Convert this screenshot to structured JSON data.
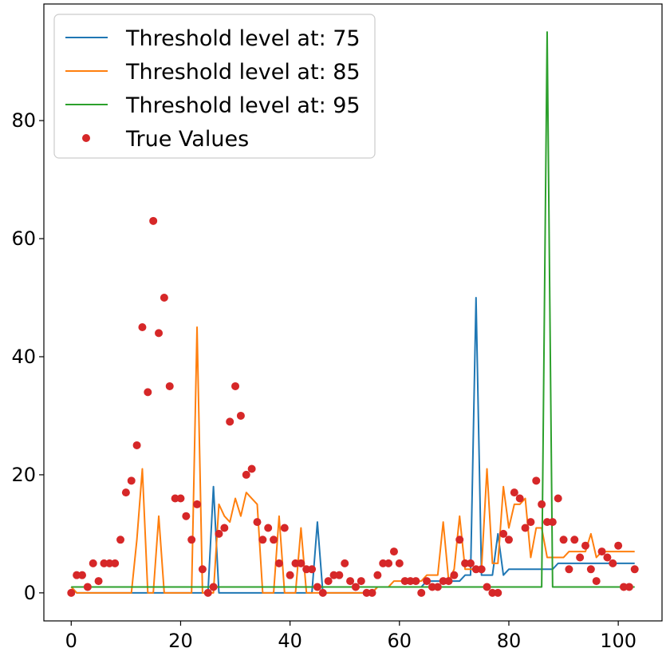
{
  "chart_data": {
    "type": "line",
    "xlim": [
      -5,
      108
    ],
    "ylim": [
      -4.75,
      99.75
    ],
    "x_ticks": [
      0,
      20,
      40,
      60,
      80,
      100
    ],
    "y_ticks": [
      0,
      20,
      40,
      60,
      80
    ],
    "grid": false,
    "legend_position": "top-left",
    "series": [
      {
        "name": "Threshold level at: 75",
        "kind": "line",
        "color": "#1f77b4",
        "x": [
          0,
          1,
          2,
          3,
          4,
          5,
          6,
          7,
          8,
          9,
          10,
          11,
          12,
          13,
          14,
          15,
          16,
          17,
          18,
          19,
          20,
          21,
          22,
          23,
          24,
          25,
          26,
          27,
          28,
          29,
          30,
          31,
          32,
          33,
          34,
          35,
          36,
          37,
          38,
          39,
          40,
          41,
          42,
          43,
          44,
          45,
          46,
          47,
          48,
          49,
          50,
          51,
          52,
          53,
          54,
          55,
          56,
          57,
          58,
          59,
          60,
          61,
          62,
          63,
          64,
          65,
          66,
          67,
          68,
          69,
          70,
          71,
          72,
          73,
          74,
          75,
          76,
          77,
          78,
          79,
          80,
          81,
          82,
          83,
          84,
          85,
          86,
          87,
          88,
          89,
          90,
          91,
          92,
          93,
          94,
          95,
          96,
          97,
          98,
          99,
          100,
          101,
          102,
          103
        ],
        "values": [
          1,
          0,
          0,
          0,
          0,
          0,
          0,
          0,
          0,
          0,
          0,
          0,
          0,
          0,
          0,
          0,
          0,
          0,
          0,
          0,
          0,
          0,
          0,
          0,
          0,
          0,
          18,
          0,
          0,
          0,
          0,
          0,
          0,
          0,
          0,
          0,
          0,
          0,
          0,
          0,
          0,
          0,
          0,
          0,
          0,
          12,
          0,
          0,
          0,
          0,
          0,
          0,
          0,
          0,
          0,
          0,
          1,
          1,
          1,
          1,
          1,
          1,
          1,
          1,
          1,
          2,
          2,
          2,
          2,
          2,
          2,
          2,
          3,
          3,
          50,
          3,
          3,
          3,
          10,
          3,
          4,
          4,
          4,
          4,
          4,
          4,
          4,
          4,
          4,
          5,
          5,
          5,
          5,
          5,
          5,
          5,
          5,
          5,
          5,
          5,
          5,
          5,
          5,
          5
        ]
      },
      {
        "name": "Threshold level at: 85",
        "kind": "line",
        "color": "#ff7f0e",
        "x": [
          0,
          1,
          2,
          3,
          4,
          5,
          6,
          7,
          8,
          9,
          10,
          11,
          12,
          13,
          14,
          15,
          16,
          17,
          18,
          19,
          20,
          21,
          22,
          23,
          24,
          25,
          26,
          27,
          28,
          29,
          30,
          31,
          32,
          33,
          34,
          35,
          36,
          37,
          38,
          39,
          40,
          41,
          42,
          43,
          44,
          45,
          46,
          47,
          48,
          49,
          50,
          51,
          52,
          53,
          54,
          55,
          56,
          57,
          58,
          59,
          60,
          61,
          62,
          63,
          64,
          65,
          66,
          67,
          68,
          69,
          70,
          71,
          72,
          73,
          74,
          75,
          76,
          77,
          78,
          79,
          80,
          81,
          82,
          83,
          84,
          85,
          86,
          87,
          88,
          89,
          90,
          91,
          92,
          93,
          94,
          95,
          96,
          97,
          98,
          99,
          100,
          101,
          102,
          103
        ],
        "values": [
          1,
          0,
          0,
          0,
          0,
          0,
          0,
          0,
          0,
          0,
          0,
          0,
          9,
          21,
          0,
          0,
          13,
          0,
          0,
          0,
          0,
          0,
          0,
          45,
          0,
          0,
          0,
          15,
          13,
          12,
          16,
          13,
          17,
          16,
          15,
          0,
          0,
          0,
          13,
          0,
          0,
          0,
          11,
          0,
          0,
          0,
          0,
          0,
          0,
          0,
          0,
          0,
          0,
          0,
          0,
          0,
          1,
          1,
          1,
          2,
          2,
          2,
          2,
          2,
          2,
          3,
          3,
          3,
          12,
          2,
          4,
          13,
          4,
          4,
          4,
          4,
          21,
          5,
          5,
          18,
          11,
          15,
          15,
          16,
          6,
          11,
          11,
          6,
          6,
          6,
          6,
          7,
          7,
          7,
          7,
          10,
          6,
          7,
          7,
          7,
          7,
          7,
          7,
          7
        ]
      },
      {
        "name": "Threshold level at: 95",
        "kind": "line",
        "color": "#2ca02c",
        "x": [
          0,
          1,
          2,
          3,
          4,
          5,
          6,
          7,
          8,
          9,
          10,
          11,
          12,
          13,
          14,
          15,
          16,
          17,
          18,
          19,
          20,
          21,
          22,
          23,
          24,
          25,
          26,
          27,
          28,
          29,
          30,
          31,
          32,
          33,
          34,
          35,
          36,
          37,
          38,
          39,
          40,
          41,
          42,
          43,
          44,
          45,
          46,
          47,
          48,
          49,
          50,
          51,
          52,
          53,
          54,
          55,
          56,
          57,
          58,
          59,
          60,
          61,
          62,
          63,
          64,
          65,
          66,
          67,
          68,
          69,
          70,
          71,
          72,
          73,
          74,
          75,
          76,
          77,
          78,
          79,
          80,
          81,
          82,
          83,
          84,
          85,
          86,
          87,
          88,
          89,
          90,
          91,
          92,
          93,
          94,
          95,
          96,
          97,
          98,
          99,
          100,
          101,
          102,
          103
        ],
        "values": [
          1,
          1,
          1,
          1,
          1,
          1,
          1,
          1,
          1,
          1,
          1,
          1,
          1,
          1,
          1,
          1,
          1,
          1,
          1,
          1,
          1,
          1,
          1,
          1,
          1,
          1,
          1,
          1,
          1,
          1,
          1,
          1,
          1,
          1,
          1,
          1,
          1,
          1,
          1,
          1,
          1,
          1,
          1,
          1,
          1,
          1,
          1,
          1,
          1,
          1,
          1,
          1,
          1,
          1,
          1,
          1,
          1,
          1,
          1,
          1,
          1,
          1,
          1,
          1,
          1,
          1,
          1,
          1,
          1,
          1,
          1,
          1,
          1,
          1,
          1,
          1,
          1,
          1,
          1,
          1,
          1,
          1,
          1,
          1,
          1,
          1,
          1,
          95,
          1,
          1,
          1,
          1,
          1,
          1,
          1,
          1,
          1,
          1,
          1,
          1,
          1,
          1,
          1,
          1
        ]
      },
      {
        "name": "True Values",
        "kind": "points",
        "color": "#d62728",
        "x": [
          0,
          1,
          2,
          3,
          4,
          5,
          6,
          7,
          8,
          9,
          10,
          11,
          12,
          13,
          14,
          15,
          16,
          17,
          18,
          19,
          20,
          21,
          22,
          23,
          24,
          25,
          26,
          27,
          28,
          29,
          30,
          31,
          32,
          33,
          34,
          35,
          36,
          37,
          38,
          39,
          40,
          41,
          42,
          43,
          44,
          45,
          46,
          47,
          48,
          49,
          50,
          51,
          52,
          53,
          54,
          55,
          56,
          57,
          58,
          59,
          60,
          61,
          62,
          63,
          64,
          65,
          66,
          67,
          68,
          69,
          70,
          71,
          72,
          73,
          74,
          75,
          76,
          77,
          78,
          79,
          80,
          81,
          82,
          83,
          84,
          85,
          86,
          87,
          88,
          89,
          90,
          91,
          92,
          93,
          94,
          95,
          96,
          97,
          98,
          99,
          100,
          101,
          102,
          103
        ],
        "values": [
          0,
          3,
          3,
          1,
          5,
          2,
          5,
          5,
          5,
          9,
          17,
          19,
          25,
          45,
          34,
          63,
          44,
          50,
          35,
          16,
          16,
          13,
          9,
          15,
          4,
          0,
          1,
          10,
          11,
          29,
          35,
          30,
          20,
          21,
          12,
          9,
          11,
          9,
          5,
          11,
          3,
          5,
          5,
          4,
          4,
          1,
          0,
          2,
          3,
          3,
          5,
          2,
          1,
          2,
          0,
          0,
          3,
          5,
          5,
          7,
          5,
          2,
          2,
          2,
          0,
          2,
          1,
          1,
          2,
          2,
          3,
          9,
          5,
          5,
          4,
          4,
          1,
          0,
          0,
          10,
          9,
          17,
          16,
          11,
          12,
          19,
          15,
          12,
          12,
          16,
          9,
          4,
          9,
          6,
          8,
          4,
          2,
          7,
          6,
          5,
          8,
          1,
          1,
          4
        ]
      }
    ]
  }
}
